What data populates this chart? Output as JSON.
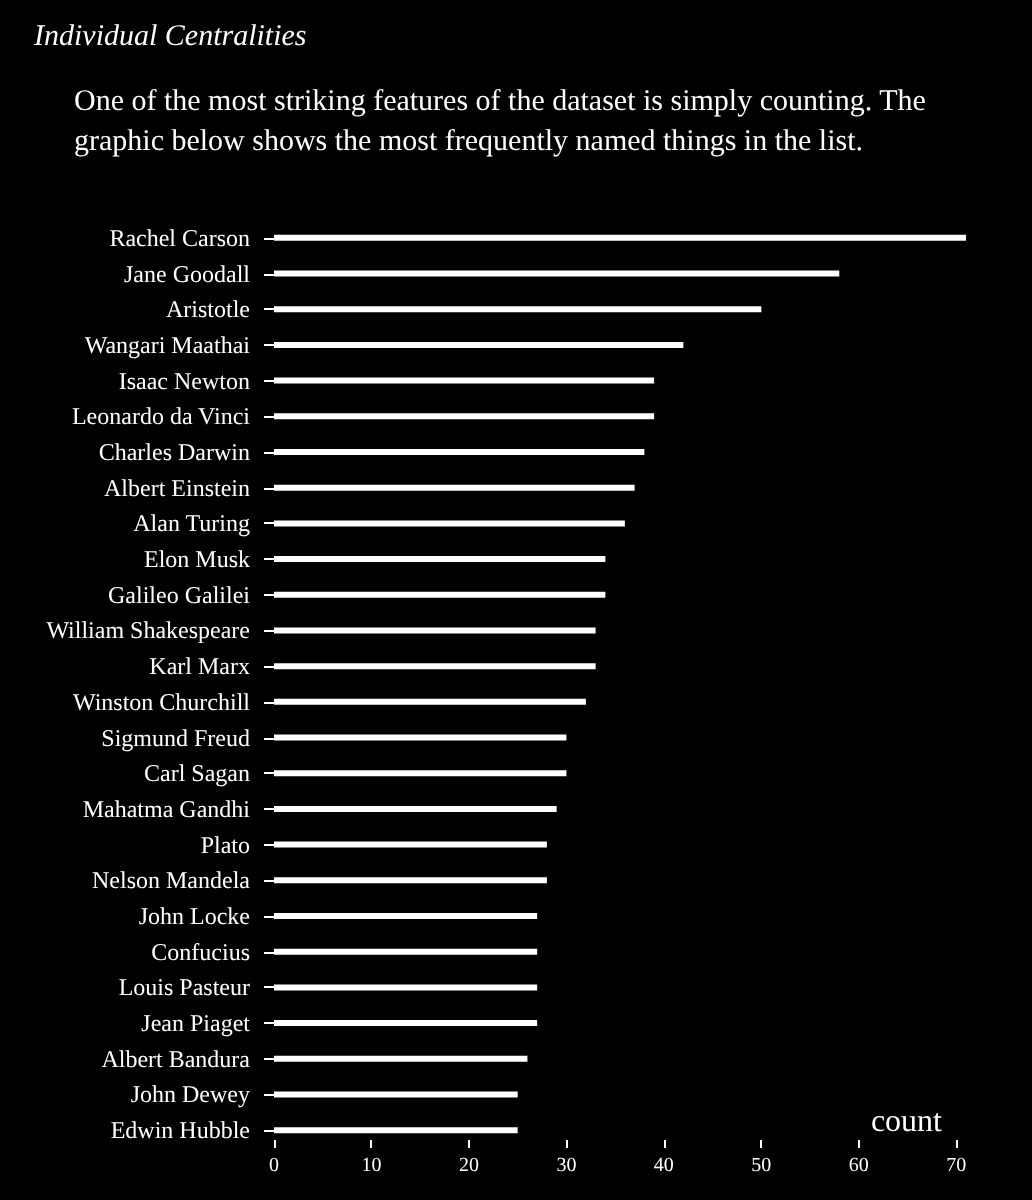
{
  "chart_data": {
    "type": "bar",
    "orientation": "horizontal",
    "title": "Individual Centralities",
    "subtitle": "One of the most striking features of the dataset is simply counting. The graphic below shows the most frequently named things in the list.",
    "xlabel": "count",
    "categories": [
      "Rachel Carson",
      "Jane Goodall",
      "Aristotle",
      "Wangari Maathai",
      "Isaac Newton",
      "Leonardo da Vinci",
      "Charles Darwin",
      "Albert Einstein",
      "Alan Turing",
      "Elon Musk",
      "Galileo Galilei",
      "William Shakespeare",
      "Karl Marx",
      "Winston Churchill",
      "Sigmund Freud",
      "Carl Sagan",
      "Mahatma Gandhi",
      "Plato",
      "Nelson Mandela",
      "John Locke",
      "Confucius",
      "Louis Pasteur",
      "Jean Piaget",
      "Albert Bandura",
      "John Dewey",
      "Edwin Hubble"
    ],
    "values": [
      71,
      58,
      50,
      42,
      39,
      39,
      38,
      37,
      36,
      34,
      34,
      33,
      33,
      32,
      30,
      30,
      29,
      28,
      28,
      27,
      27,
      27,
      27,
      26,
      25,
      25
    ],
    "color": "#ffffff",
    "xlim": [
      0,
      71
    ],
    "xticks": [
      0,
      10,
      20,
      30,
      40,
      50,
      60,
      70
    ]
  }
}
